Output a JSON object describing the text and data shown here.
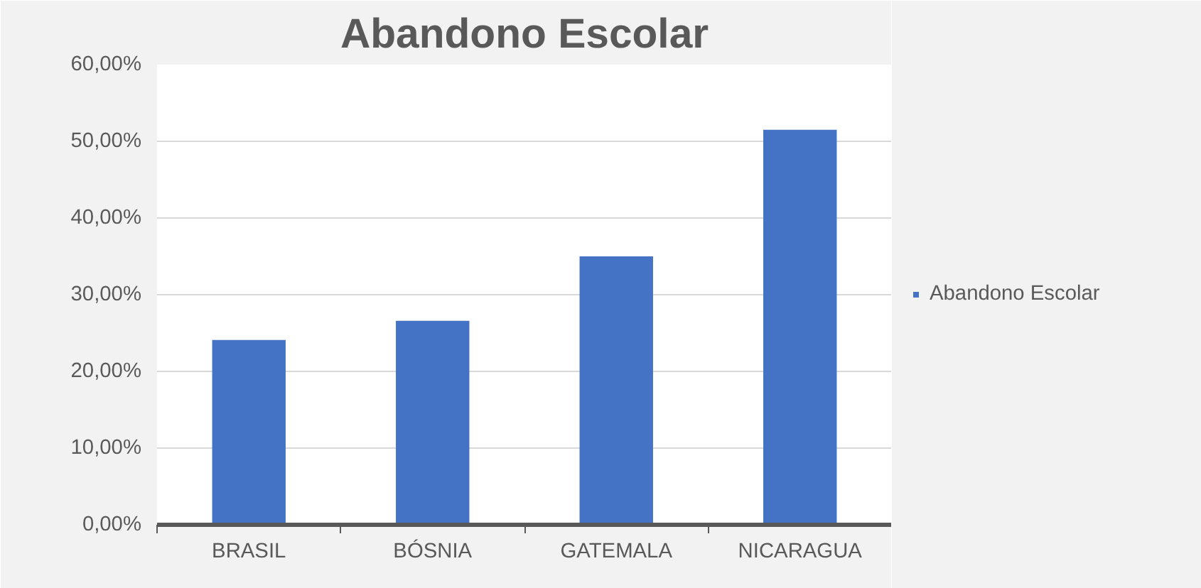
{
  "chart_data": {
    "type": "bar",
    "title": "Abandono Escolar",
    "categories": [
      "BRASIL",
      "BÓSNIA",
      "GATEMALA",
      "NICARAGUA"
    ],
    "series": [
      {
        "name": "Abandono Escolar",
        "color": "#4472c4",
        "values": [
          24.1,
          26.6,
          35.0,
          51.5
        ]
      }
    ],
    "ylim": [
      0,
      60
    ],
    "yticks": [
      {
        "value": 0,
        "label": "0,00%"
      },
      {
        "value": 10,
        "label": "10,00%"
      },
      {
        "value": 20,
        "label": "20,00%"
      },
      {
        "value": 30,
        "label": "30,00%"
      },
      {
        "value": 40,
        "label": "40,00%"
      },
      {
        "value": 50,
        "label": "50,00%"
      },
      {
        "value": 60,
        "label": "60,00%"
      }
    ],
    "grid": "y",
    "legend": "right"
  }
}
